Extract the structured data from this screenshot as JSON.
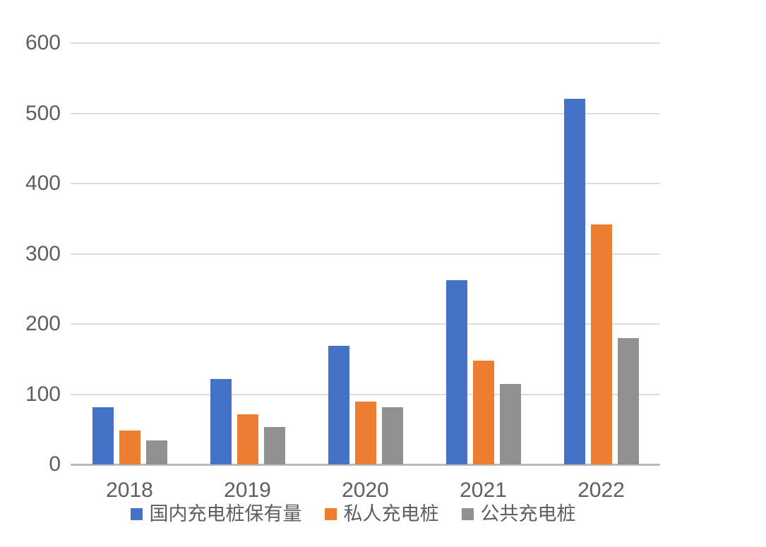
{
  "chart_data": {
    "type": "bar",
    "title": "",
    "xlabel": "",
    "ylabel": "",
    "categories": [
      "2018",
      "2019",
      "2020",
      "2021",
      "2022"
    ],
    "series": [
      {
        "name": "国内充电桩保有量",
        "color": "#4472c4",
        "values": [
          81,
          122,
          169,
          262,
          521
        ]
      },
      {
        "name": "私人充电桩",
        "color": "#ed7d31",
        "values": [
          48,
          71,
          89,
          148,
          342
        ]
      },
      {
        "name": "公共充电桩",
        "color": "#909090",
        "values": [
          34,
          53,
          81,
          115,
          180
        ]
      }
    ],
    "ylim": [
      0,
      600
    ],
    "yticks": [
      0,
      100,
      200,
      300,
      400,
      500,
      600
    ],
    "grid": true,
    "gridline_color": "#dcdcdc",
    "axis_line_color": "#b9bcbf",
    "tick_label_color": "#5a5f66",
    "background_color": "#ffffff",
    "legend_position": "bottom"
  }
}
